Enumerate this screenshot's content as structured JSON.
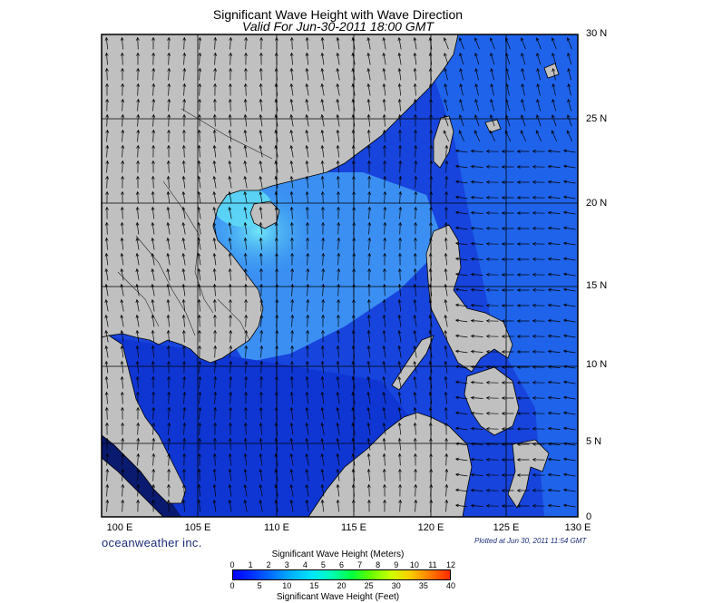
{
  "title": "Significant Wave Height with Wave Direction",
  "subtitle": "Valid For Jun-30-2011 18:00 GMT",
  "lat_labels": [
    "30 N",
    "25 N",
    "20 N",
    "15 N",
    "10 N",
    "5 N",
    "0"
  ],
  "lon_labels": [
    "100 E",
    "105 E",
    "110 E",
    "115 E",
    "120 E",
    "125 E",
    "130 E"
  ],
  "brand": "oceanweather inc.",
  "plotted_note": "Plotted at Jun 30, 2011 11:54 GMT",
  "legend": {
    "meters_title": "Significant Wave Height (Meters)",
    "feet_title": "Significant Wave Height (Feet)",
    "meters_ticks": [
      "0",
      "1",
      "2",
      "3",
      "4",
      "5",
      "6",
      "7",
      "8",
      "9",
      "10",
      "11",
      "12"
    ],
    "feet_ticks": [
      "0",
      "5",
      "10",
      "15",
      "20",
      "25",
      "30",
      "35",
      "40"
    ],
    "colors": [
      "#0000ff",
      "#0033ff",
      "#0073ff",
      "#00b5ff",
      "#00e5ff",
      "#00ffb5",
      "#00ff40",
      "#66ff00",
      "#ccff00",
      "#ffcc00",
      "#ff7a00",
      "#ff2a00"
    ]
  },
  "colors": {
    "land": "#c0c0c0",
    "sea_deep": "#1037d8",
    "sea_mid": "#1a5ae6",
    "sea_light": "#2f8df0",
    "sea_cyan": "#56d8f5",
    "grid": "#000000"
  }
}
